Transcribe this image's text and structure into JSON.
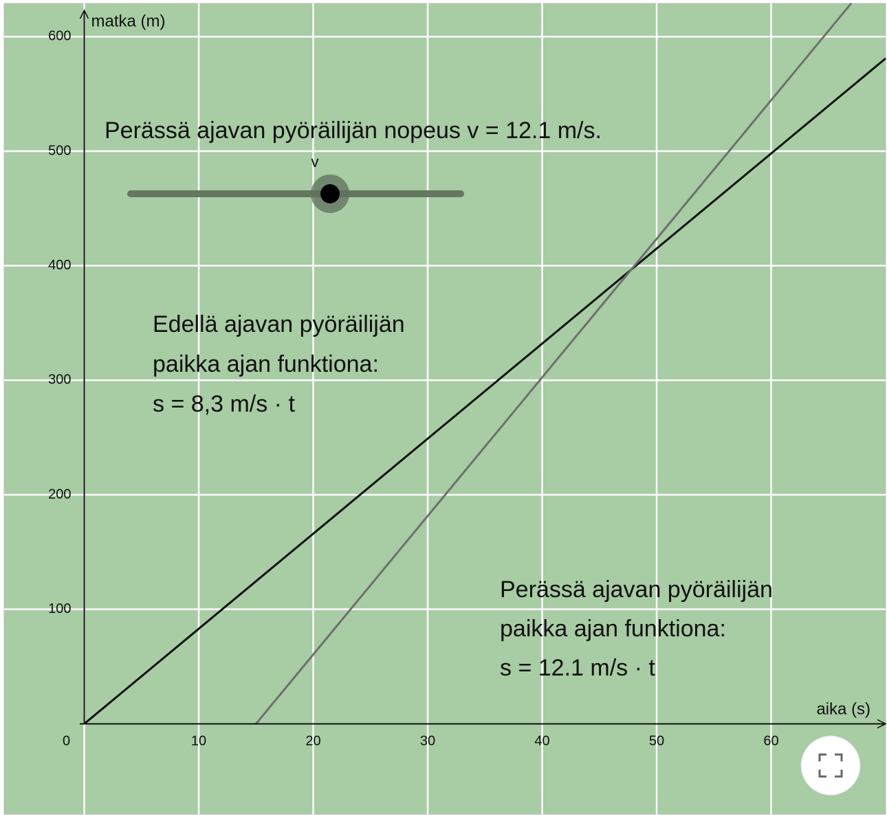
{
  "chart_data": {
    "type": "line",
    "xlabel": "aika (s)",
    "ylabel": "matka (m)",
    "xlim": [
      -7,
      70
    ],
    "ylim": [
      -79,
      629
    ],
    "xticks": [
      0,
      10,
      20,
      30,
      40,
      50,
      60
    ],
    "yticks": [
      100,
      200,
      300,
      400,
      500,
      600
    ],
    "grid": true,
    "background": "#a8cca4",
    "series": [
      {
        "color": "#111111",
        "x": [
          0,
          70
        ],
        "values": [
          0,
          581
        ]
      },
      {
        "color": "#6f6f6f",
        "x": [
          15,
          67
        ],
        "values": [
          0,
          629.2
        ]
      }
    ],
    "annotations": [
      "Perässä ajavan pyöräilijän nopeus v = 12.1 m/s.",
      "v",
      "Edellä ajavan pyöräilijän",
      "paikka ajan funktiona:",
      "s = 8,3 m/s · t",
      "Perässä ajavan pyöräilijän",
      "paikka ajan funktiona:",
      "s = 12.1 m/s · t"
    ]
  }
}
